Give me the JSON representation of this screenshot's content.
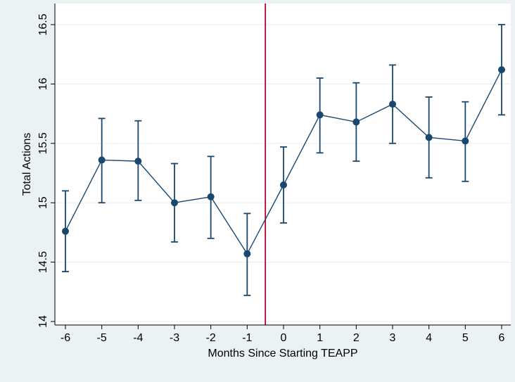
{
  "chart_data": {
    "type": "line",
    "xlabel": "Months Since Starting TEAPP",
    "ylabel": "Total Actions",
    "xlim": [
      -6,
      6
    ],
    "ylim": [
      14,
      16.5
    ],
    "x_ticks": [
      "-6",
      "-5",
      "-4",
      "-3",
      "-2",
      "-1",
      "0",
      "1",
      "2",
      "3",
      "4",
      "5",
      "6"
    ],
    "y_ticks": [
      "14",
      "14.5",
      "15",
      "15.5",
      "16",
      "16.5"
    ],
    "grid": true,
    "reference_line_x": -0.5,
    "series": [
      {
        "x": [
          -6,
          -5,
          -4,
          -3,
          -2,
          -1,
          0,
          1,
          2,
          3,
          4,
          5,
          6
        ],
        "y": [
          14.76,
          15.36,
          15.35,
          15.0,
          15.05,
          14.57,
          15.15,
          15.74,
          15.68,
          15.83,
          15.55,
          15.52,
          16.12
        ],
        "ci_low": [
          14.42,
          15.0,
          15.02,
          14.67,
          14.7,
          14.22,
          14.83,
          15.42,
          15.35,
          15.5,
          15.21,
          15.18,
          15.74
        ],
        "ci_high": [
          15.1,
          15.71,
          15.69,
          15.33,
          15.39,
          14.91,
          15.47,
          16.05,
          16.01,
          16.16,
          15.89,
          15.85,
          16.5
        ]
      }
    ],
    "colors": {
      "series": "#1a476f",
      "reference_line": "#b8002e",
      "grid": "#eaf2f3",
      "plot_background": "#ffffff",
      "page_background": "#eaf2f3"
    }
  }
}
